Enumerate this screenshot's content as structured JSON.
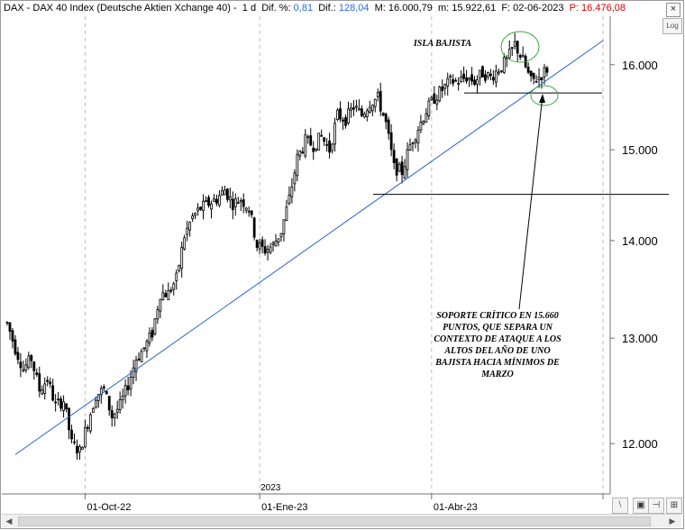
{
  "header": {
    "symbol": "DAX - DAX 40 Index (Deutsche Aktien Xchange 40)",
    "timeframe": "1 d",
    "dif_pct_label": "Dif. %:",
    "dif_pct_value": "0,81",
    "dif_label": "Dif.:",
    "dif_value": "128,04",
    "max_label": "M:",
    "max_value": "16.000,79",
    "min_label": "m:",
    "min_value": "15.922,61",
    "date_label": "F:",
    "date_value": "02-06-2023",
    "price_label": "P:",
    "price_value": "16.476,08",
    "colors": {
      "value_blue": "#2a6bd8",
      "price_red": "#d40000"
    }
  },
  "controls": {
    "log_label": "Log",
    "close_label": "×"
  },
  "annotations": {
    "island": "ISLA BAJISTA",
    "support_lines": [
      "SOPORTE CRÍTICO EN 15.660",
      "PUNTOS, QUE SEPARA UN",
      "CONTEXTO DE ATAQUE A LOS",
      "ALTOS DEL AÑO DE UNO",
      "BAJISTA HACIA MÍNIMOS DE",
      "MARZO"
    ]
  },
  "chart_data": {
    "type": "candlestick",
    "title": "",
    "xlabel": "",
    "ylabel": "",
    "x_tick_labels": [
      "01-Oct-22",
      "01-Ene-23",
      "01-Abr-23"
    ],
    "year_label": "2023",
    "y_tick_labels": [
      "12.000",
      "13.000",
      "14.000",
      "15.000",
      "16.000"
    ],
    "y_ticks": [
      12000,
      13000,
      14000,
      15000,
      16000
    ],
    "ylim": [
      11550,
      16600
    ],
    "y_scale": "log",
    "grid": "vertical dashed at month starts",
    "series_price_path": [
      [
        0,
        13150
      ],
      [
        3,
        12900
      ],
      [
        6,
        12700
      ],
      [
        9,
        12800
      ],
      [
        12,
        12500
      ],
      [
        15,
        12600
      ],
      [
        18,
        12350
      ],
      [
        21,
        12400
      ],
      [
        24,
        12000
      ],
      [
        27,
        11930
      ],
      [
        30,
        12200
      ],
      [
        33,
        12450
      ],
      [
        36,
        12500
      ],
      [
        39,
        12250
      ],
      [
        42,
        12350
      ],
      [
        45,
        12550
      ],
      [
        48,
        12800
      ],
      [
        51,
        12900
      ],
      [
        54,
        13050
      ],
      [
        57,
        13450
      ],
      [
        60,
        13450
      ],
      [
        63,
        13600
      ],
      [
        66,
        14050
      ],
      [
        69,
        14250
      ],
      [
        72,
        14350
      ],
      [
        75,
        14400
      ],
      [
        78,
        14450
      ],
      [
        81,
        14550
      ],
      [
        84,
        14400
      ],
      [
        87,
        14450
      ],
      [
        90,
        14350
      ],
      [
        93,
        13950
      ],
      [
        96,
        13900
      ],
      [
        99,
        13950
      ],
      [
        102,
        14100
      ],
      [
        105,
        14450
      ],
      [
        108,
        14900
      ],
      [
        111,
        15100
      ],
      [
        114,
        15050
      ],
      [
        117,
        15150
      ],
      [
        120,
        15000
      ],
      [
        123,
        15400
      ],
      [
        126,
        15350
      ],
      [
        129,
        15500
      ],
      [
        132,
        15400
      ],
      [
        135,
        15550
      ],
      [
        138,
        15600
      ],
      [
        141,
        15300
      ],
      [
        144,
        14800
      ],
      [
        147,
        14750
      ],
      [
        150,
        15050
      ],
      [
        153,
        15250
      ],
      [
        156,
        15450
      ],
      [
        159,
        15600
      ],
      [
        162,
        15700
      ],
      [
        165,
        15800
      ],
      [
        168,
        15800
      ],
      [
        171,
        15850
      ],
      [
        174,
        15800
      ],
      [
        177,
        15900
      ],
      [
        180,
        15850
      ],
      [
        183,
        15950
      ],
      [
        186,
        16050
      ],
      [
        189,
        16250
      ],
      [
        192,
        16050
      ],
      [
        195,
        15800
      ],
      [
        198,
        15850
      ],
      [
        201,
        15950
      ]
    ],
    "lines": [
      {
        "name": "uptrend",
        "kind": "trendline",
        "color": "#2b63d1",
        "points": [
          [
            3,
            11900
          ],
          [
            222,
            16300
          ]
        ]
      },
      {
        "name": "support_15660",
        "kind": "horizontal",
        "color": "#000000",
        "y": 15660
      },
      {
        "name": "support_14500",
        "kind": "horizontal",
        "color": "#000000",
        "y": 14500
      }
    ]
  }
}
